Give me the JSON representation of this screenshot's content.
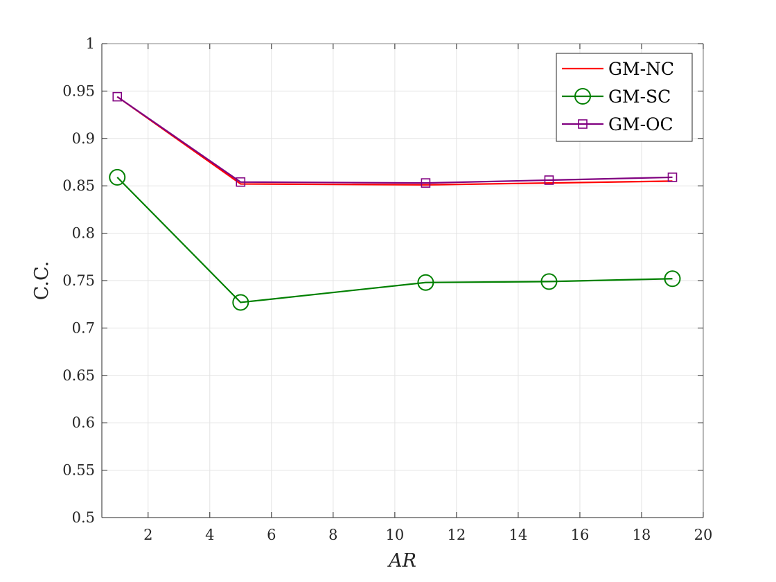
{
  "chart_data": {
    "type": "line",
    "title": "",
    "xlabel": "AR",
    "ylabel": "C.C.",
    "xlim": [
      0.5,
      20
    ],
    "ylim": [
      0.5,
      1
    ],
    "xticks": [
      2,
      4,
      6,
      8,
      10,
      12,
      14,
      16,
      18,
      20
    ],
    "yticks": [
      0.5,
      0.55,
      0.6,
      0.65,
      0.7,
      0.75,
      0.8,
      0.85,
      0.9,
      0.95,
      1
    ],
    "xtick_labels": [
      "2",
      "4",
      "6",
      "8",
      "10",
      "12",
      "14",
      "16",
      "18",
      "20"
    ],
    "ytick_labels": [
      "0.5",
      "0.55",
      "0.6",
      "0.65",
      "0.7",
      "0.75",
      "0.8",
      "0.85",
      "0.9",
      "0.95",
      "1"
    ],
    "grid": true,
    "legend_position": "top-right",
    "x": [
      1,
      5,
      11,
      15,
      19
    ],
    "series": [
      {
        "name": "GM-NC",
        "values": [
          0.944,
          0.852,
          0.851,
          0.853,
          0.855
        ],
        "color": "#ff0000",
        "marker": "none"
      },
      {
        "name": "GM-SC",
        "values": [
          0.859,
          0.727,
          0.748,
          0.749,
          0.752
        ],
        "color": "#008000",
        "marker": "circle"
      },
      {
        "name": "GM-OC",
        "values": [
          0.944,
          0.854,
          0.853,
          0.856,
          0.859
        ],
        "color": "#800080",
        "marker": "square"
      }
    ]
  }
}
